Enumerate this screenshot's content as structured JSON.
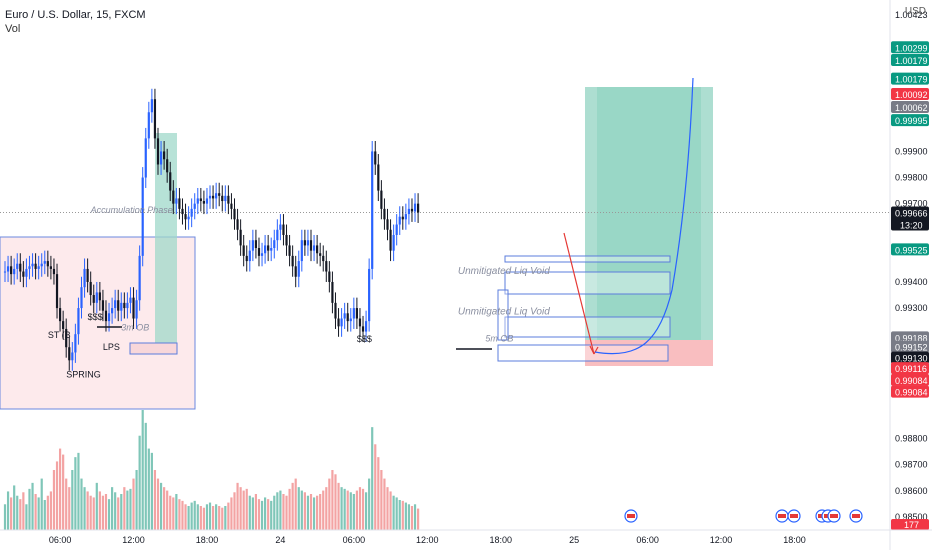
{
  "header": {
    "symbol_line": "Euro / U.S. Dollar, 15, FXCM",
    "volume_label": "Vol"
  },
  "colors": {
    "up": "#2962ff",
    "down": "#131722",
    "vol_up": "#7fc6b8",
    "vol_down": "#f3a3a3",
    "target_zone": "#9fd8c9",
    "stop_zone": "#f8b7b9",
    "accum_box": "#fde8ea",
    "box_border": "#5b7cdc",
    "price_tag": "#131722",
    "green_tag": "#089981",
    "red_tag": "#f23645",
    "gray_tag": "#787b86"
  },
  "chart_data": {
    "type": "candlestick",
    "currency": "USD",
    "y_ticks": [
      1.00423,
      0.999,
      0.998,
      0.997,
      0.994,
      0.993,
      0.988,
      0.987,
      0.986,
      0.985
    ],
    "y_tick_labels": [
      "1.00423",
      "0.99900",
      "0.99800",
      "0.99700",
      "0.99400",
      "0.99300",
      "0.98800",
      "0.98700",
      "0.98600",
      "0.98500"
    ],
    "y_range": [
      0.9845,
      1.0048
    ],
    "price_tags": [
      {
        "label": "1.00299",
        "value": 1.00299,
        "kind": "green"
      },
      {
        "label": "1.00179",
        "value": 1.0025,
        "kind": "green"
      },
      {
        "label": "1.00179",
        "value": 1.00179,
        "kind": "green"
      },
      {
        "label": "1.00092",
        "value": 1.0012,
        "kind": "red"
      },
      {
        "label": "1.00062",
        "value": 1.0007,
        "kind": "gray"
      },
      {
        "label": "0.99995",
        "value": 1.0002,
        "kind": "green"
      },
      {
        "label": "0.99666",
        "value": 0.99666,
        "kind": "current",
        "sub": "13:20"
      },
      {
        "label": "0.99525",
        "value": 0.99525,
        "kind": "green"
      },
      {
        "label": "0.99188",
        "value": 0.99188,
        "kind": "gray"
      },
      {
        "label": "0.99152",
        "value": 0.99152,
        "kind": "gray"
      },
      {
        "label": "0.99130",
        "value": 0.9911,
        "kind": "dark"
      },
      {
        "label": "0.99116",
        "value": 0.9907,
        "kind": "red"
      },
      {
        "label": "0.99084",
        "value": 0.99025,
        "kind": "red"
      },
      {
        "label": "0.99084",
        "value": 0.9898,
        "kind": "red"
      }
    ],
    "volume_tag": "177",
    "x_labels": [
      {
        "label": "06:00",
        "t": 18
      },
      {
        "label": "12:00",
        "t": 42
      },
      {
        "label": "18:00",
        "t": 66
      },
      {
        "label": "24",
        "t": 90
      },
      {
        "label": "06:00",
        "t": 114
      },
      {
        "label": "12:00",
        "t": 138
      },
      {
        "label": "18:00",
        "t": 162
      },
      {
        "label": "25",
        "t": 186
      },
      {
        "label": "06:00",
        "t": 210
      },
      {
        "label": "12:00",
        "t": 234
      },
      {
        "label": "18:00",
        "t": 258
      }
    ],
    "close": [
      0.9944,
      0.9946,
      0.9943,
      0.9945,
      0.9947,
      0.9944,
      0.9942,
      0.9945,
      0.9946,
      0.9947,
      0.9945,
      0.9946,
      0.9947,
      0.9948,
      0.9946,
      0.9945,
      0.9943,
      0.993,
      0.9925,
      0.9922,
      0.9915,
      0.991,
      0.9913,
      0.992,
      0.993,
      0.9938,
      0.9945,
      0.994,
      0.9935,
      0.9932,
      0.9936,
      0.9933,
      0.9929,
      0.9925,
      0.9928,
      0.993,
      0.9933,
      0.9929,
      0.9932,
      0.993,
      0.9932,
      0.9934,
      0.9926,
      0.9933,
      0.995,
      0.998,
      0.9995,
      1.0005,
      1.001,
      0.9995,
      0.9985,
      0.999,
      0.9987,
      0.9982,
      0.9975,
      0.997,
      0.9972,
      0.9968,
      0.9966,
      0.9964,
      0.9965,
      0.9968,
      0.997,
      0.9972,
      0.9971,
      0.997,
      0.9972,
      0.9973,
      0.9972,
      0.9974,
      0.9973,
      0.9971,
      0.9973,
      0.997,
      0.9968,
      0.9964,
      0.996,
      0.9954,
      0.995,
      0.9948,
      0.9952,
      0.9956,
      0.9953,
      0.995,
      0.9951,
      0.9954,
      0.9952,
      0.9953,
      0.9956,
      0.996,
      0.9962,
      0.9958,
      0.9954,
      0.995,
      0.9946,
      0.9942,
      0.9948,
      0.9956,
      0.9954,
      0.9956,
      0.9952,
      0.9954,
      0.9951,
      0.995,
      0.9948,
      0.9944,
      0.994,
      0.9932,
      0.9926,
      0.9923,
      0.9926,
      0.9928,
      0.9925,
      0.9926,
      0.993,
      0.9926,
      0.9923,
      0.9921,
      0.9925,
      0.9945,
      0.999,
      0.9985,
      0.9975,
      0.9968,
      0.9964,
      0.996,
      0.9952,
      0.9958,
      0.9962,
      0.9965,
      0.9964,
      0.9966,
      0.9968,
      0.9967,
      0.997,
      0.99666
    ],
    "volume": [
      30,
      45,
      38,
      52,
      40,
      36,
      44,
      30,
      48,
      55,
      42,
      38,
      60,
      35,
      40,
      45,
      70,
      80,
      95,
      88,
      60,
      50,
      70,
      85,
      90,
      60,
      50,
      45,
      40,
      38,
      55,
      45,
      40,
      42,
      36,
      50,
      44,
      38,
      42,
      50,
      46,
      48,
      60,
      70,
      110,
      140,
      125,
      95,
      90,
      70,
      60,
      55,
      50,
      46,
      40,
      38,
      42,
      36,
      34,
      30,
      28,
      32,
      34,
      30,
      28,
      26,
      30,
      32,
      28,
      30,
      28,
      26,
      28,
      32,
      38,
      44,
      55,
      50,
      46,
      48,
      40,
      38,
      42,
      36,
      34,
      38,
      36,
      34,
      40,
      44,
      46,
      42,
      40,
      48,
      55,
      60,
      50,
      46,
      44,
      40,
      42,
      38,
      40,
      42,
      46,
      50,
      60,
      70,
      65,
      55,
      50,
      48,
      46,
      44,
      42,
      46,
      50,
      48,
      44,
      60,
      120,
      100,
      85,
      70,
      60,
      50,
      45,
      40,
      38,
      35,
      34,
      32,
      30,
      28,
      30,
      25
    ],
    "annotations": [
      {
        "text": "Accumulation Phase",
        "t": 28,
        "p": 0.99665
      },
      {
        "text": "ST (B",
        "t": 14,
        "p": 0.99185
      },
      {
        "text": "SPRING",
        "t": 20,
        "p": 0.99035
      },
      {
        "text": "LPS",
        "t": 32,
        "p": 0.9914
      },
      {
        "text": "$$$",
        "t": 27,
        "p": 0.99255
      },
      {
        "text": "3m OB",
        "t": 38,
        "p": 0.99215
      },
      {
        "text": "$$$",
        "t": 115,
        "p": 0.9917
      },
      {
        "text": "Unmitigated Liq Void",
        "t": 148,
        "p": 0.9943
      },
      {
        "text": "Unmitigated Liq Void",
        "t": 148,
        "p": 0.99275
      },
      {
        "text": "5m OB",
        "t": 157,
        "p": 0.99172
      }
    ]
  }
}
